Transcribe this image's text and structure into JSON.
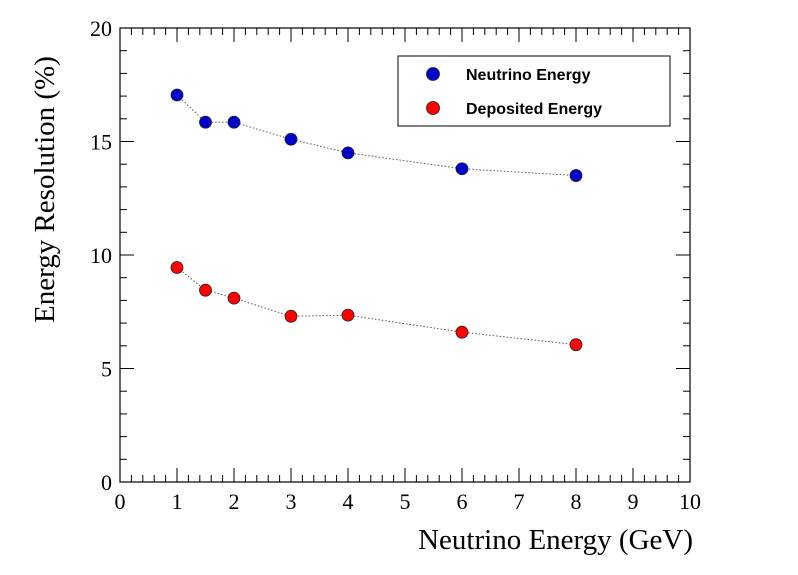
{
  "chart_data": {
    "type": "scatter",
    "xlabel": "Neutrino Energy (GeV)",
    "ylabel": "Energy Resolution (%)",
    "xlim": [
      0,
      10
    ],
    "ylim": [
      0,
      20
    ],
    "x_ticks": [
      0,
      1,
      2,
      3,
      4,
      5,
      6,
      7,
      8,
      9,
      10
    ],
    "y_ticks": [
      0,
      5,
      10,
      15,
      20
    ],
    "grid": false,
    "legend_position": "top-right",
    "series": [
      {
        "name": "Neutrino Energy",
        "color": "#0000cc",
        "x": [
          1,
          1.5,
          2,
          3,
          4,
          6,
          8
        ],
        "y": [
          17.05,
          15.85,
          15.85,
          15.1,
          14.5,
          13.8,
          13.5
        ]
      },
      {
        "name": "Deposited Energy",
        "color": "#ff0000",
        "x": [
          1,
          1.5,
          2,
          3,
          4,
          6,
          8
        ],
        "y": [
          9.45,
          8.45,
          8.1,
          7.3,
          7.35,
          6.6,
          6.05
        ]
      }
    ]
  }
}
